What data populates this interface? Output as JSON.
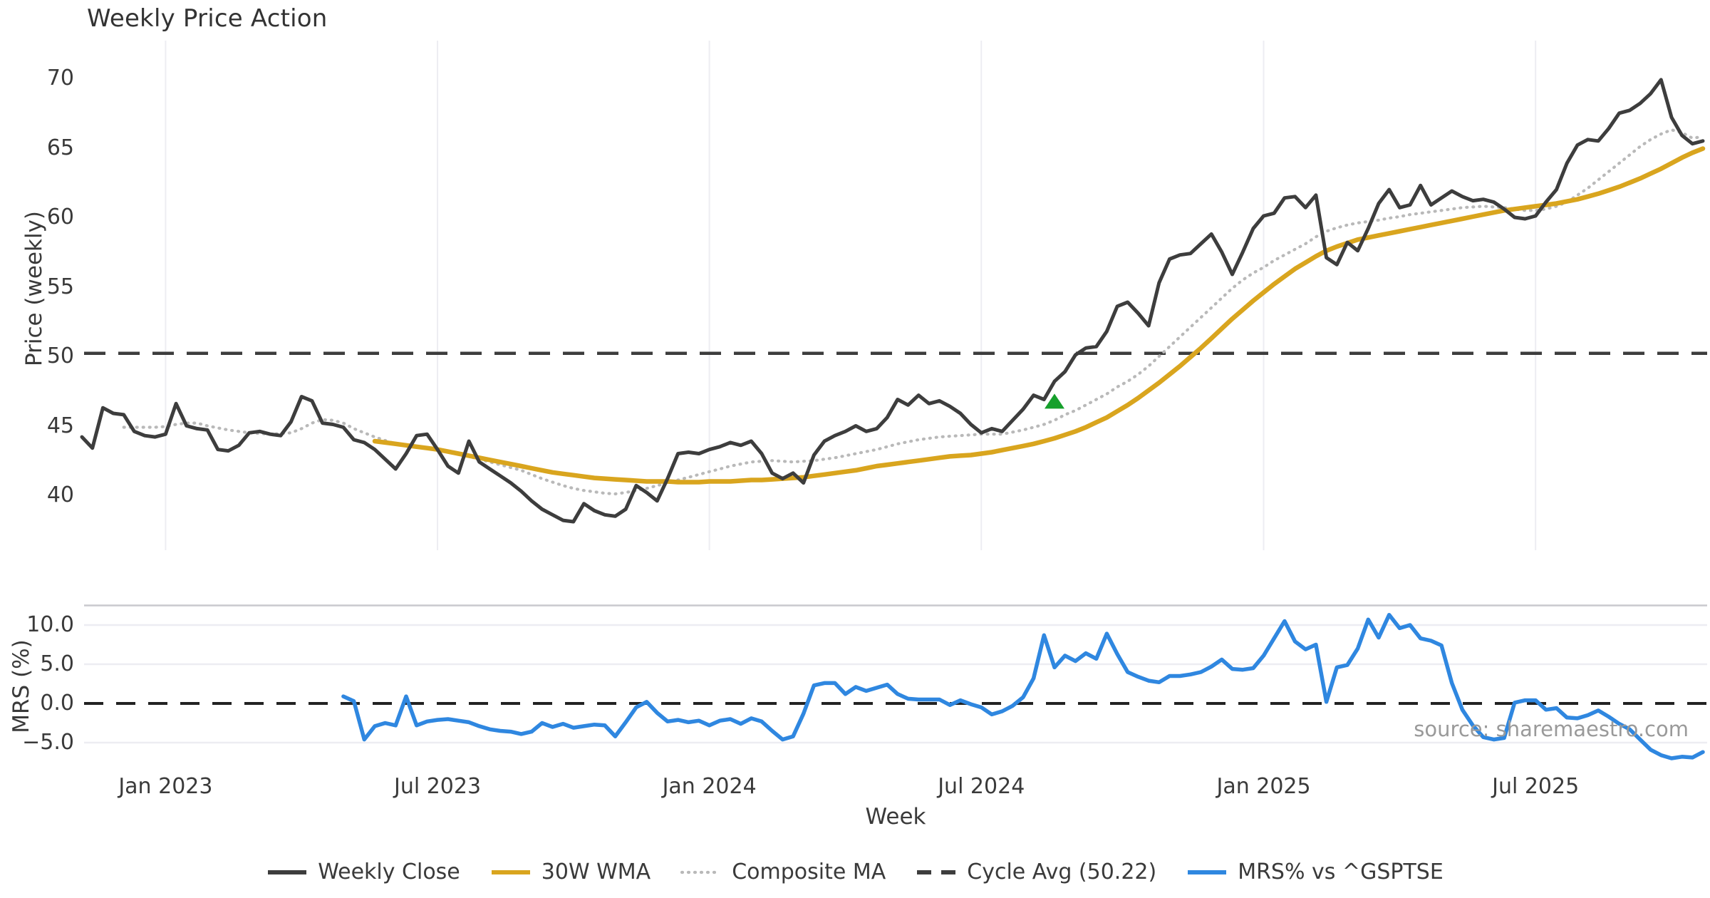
{
  "title": "Weekly Price Action",
  "xlabel": "Week",
  "source_note": "source: sharemaestro.com",
  "top_panel": {
    "ylabel": "Price (weekly)",
    "yticks": [
      70,
      65,
      60,
      55,
      50,
      45,
      40
    ],
    "ylim": [
      37.0,
      72.6
    ],
    "grid": "vertical-light"
  },
  "bottom_panel": {
    "ylabel": "MRS (%)",
    "yticks": [
      "10.0",
      "5.0",
      "0.0",
      "−5.0"
    ],
    "ytick_values": [
      10.0,
      5.0,
      0.0,
      -5.0
    ],
    "ylim": [
      -8.0,
      12.5
    ],
    "grid": "horizontal-light"
  },
  "x_ticks": [
    {
      "week_index": 8,
      "label": "Jan 2023"
    },
    {
      "week_index": 34,
      "label": "Jul 2023"
    },
    {
      "week_index": 60,
      "label": "Jan 2024"
    },
    {
      "week_index": 86,
      "label": "Jul 2024"
    },
    {
      "week_index": 113,
      "label": "Jan 2025"
    },
    {
      "week_index": 139,
      "label": "Jul 2025"
    }
  ],
  "legend": [
    {
      "label": "Weekly Close",
      "color": "#3d3d3d",
      "style": "solid"
    },
    {
      "label": "30W WMA",
      "color": "#d9a51e",
      "style": "solid"
    },
    {
      "label": "Composite MA",
      "color": "#b9b9b9",
      "style": "dotted"
    },
    {
      "label": "Cycle Avg (50.22)",
      "color": "#3d3d3d",
      "style": "dashed"
    },
    {
      "label": "MRS% vs ^GSPTSE",
      "color": "#2f87e0",
      "style": "solid"
    }
  ],
  "colors": {
    "weekly_close": "#3d3d3d",
    "wma30": "#d9a51e",
    "composite_ma": "#b9b9b9",
    "cycle_avg": "#3d3d3d",
    "mrs": "#2f87e0",
    "signal_marker": "#16a02c",
    "grid": "#ededf2",
    "panel_spine": "#c9c9ce",
    "zero_line": "#222222"
  },
  "chart_data": [
    {
      "type": "line",
      "panel": "top",
      "title": "Weekly Price Action",
      "ylabel": "Price (weekly)",
      "x_unit": "week_index (weekly samples, ~Nov 2022 to ~Oct 2025)",
      "cycle_avg_value": 50.22,
      "signal_marker": {
        "shape": "triangle-up",
        "week_index": 93,
        "value": 46.7
      },
      "series": [
        {
          "name": "Weekly Close",
          "values": [
            44.2,
            43.4,
            46.3,
            45.9,
            45.8,
            44.6,
            44.3,
            44.2,
            44.4,
            46.6,
            45.0,
            44.8,
            44.7,
            43.3,
            43.2,
            43.6,
            44.5,
            44.6,
            44.4,
            44.3,
            45.3,
            47.1,
            46.8,
            45.2,
            45.1,
            44.9,
            44.0,
            43.8,
            43.3,
            42.6,
            41.9,
            43.0,
            44.3,
            44.4,
            43.3,
            42.1,
            41.6,
            43.9,
            42.4,
            41.9,
            41.4,
            40.9,
            40.3,
            39.6,
            39.0,
            38.6,
            38.2,
            38.1,
            39.4,
            38.9,
            38.6,
            38.5,
            39.0,
            40.7,
            40.2,
            39.6,
            41.2,
            43.0,
            43.1,
            43.0,
            43.3,
            43.5,
            43.8,
            43.6,
            43.9,
            43.0,
            41.6,
            41.2,
            41.6,
            40.9,
            42.9,
            43.9,
            44.3,
            44.6,
            45.0,
            44.6,
            44.8,
            45.6,
            46.9,
            46.5,
            47.2,
            46.6,
            46.8,
            46.4,
            45.9,
            45.1,
            44.5,
            44.8,
            44.6,
            45.4,
            46.2,
            47.2,
            46.9,
            48.2,
            48.9,
            50.1,
            50.6,
            50.7,
            51.8,
            53.6,
            53.9,
            53.1,
            52.2,
            55.3,
            57.0,
            57.3,
            57.4,
            58.1,
            58.8,
            57.5,
            55.9,
            57.5,
            59.2,
            60.1,
            60.3,
            61.4,
            61.5,
            60.7,
            61.6,
            57.1,
            56.6,
            58.2,
            57.6,
            59.2,
            61.0,
            62.0,
            60.7,
            60.9,
            62.3,
            60.9,
            61.4,
            61.9,
            61.5,
            61.2,
            61.3,
            61.1,
            60.6,
            60.0,
            59.9,
            60.1,
            61.1,
            62.0,
            63.9,
            65.2,
            65.6,
            65.5,
            66.4,
            67.5,
            67.7,
            68.2,
            68.9,
            69.9,
            67.2,
            65.9,
            65.3,
            65.5
          ]
        },
        {
          "name": "30W WMA",
          "values": [
            null,
            null,
            null,
            null,
            null,
            null,
            null,
            null,
            null,
            null,
            null,
            null,
            null,
            null,
            null,
            null,
            null,
            null,
            null,
            null,
            null,
            null,
            null,
            null,
            null,
            null,
            null,
            null,
            43.9,
            43.8,
            43.7,
            43.6,
            43.5,
            43.4,
            43.3,
            43.15,
            43.0,
            42.85,
            42.7,
            42.55,
            42.4,
            42.25,
            42.1,
            41.95,
            41.8,
            41.65,
            41.55,
            41.45,
            41.35,
            41.25,
            41.2,
            41.15,
            41.1,
            41.05,
            41.0,
            41.0,
            41.0,
            40.95,
            40.95,
            40.95,
            41.0,
            41.0,
            41.0,
            41.05,
            41.1,
            41.1,
            41.15,
            41.2,
            41.25,
            41.3,
            41.4,
            41.5,
            41.6,
            41.7,
            41.8,
            41.95,
            42.1,
            42.2,
            42.3,
            42.4,
            42.5,
            42.6,
            42.7,
            42.8,
            42.85,
            42.9,
            43.0,
            43.1,
            43.25,
            43.4,
            43.55,
            43.7,
            43.9,
            44.1,
            44.35,
            44.6,
            44.9,
            45.25,
            45.6,
            46.05,
            46.5,
            47.0,
            47.55,
            48.1,
            48.7,
            49.3,
            49.95,
            50.6,
            51.3,
            52.0,
            52.7,
            53.35,
            54.0,
            54.6,
            55.2,
            55.75,
            56.3,
            56.75,
            57.2,
            57.6,
            57.9,
            58.15,
            58.4,
            58.55,
            58.7,
            58.85,
            59.0,
            59.15,
            59.3,
            59.45,
            59.6,
            59.75,
            59.9,
            60.05,
            60.2,
            60.35,
            60.5,
            60.6,
            60.7,
            60.8,
            60.9,
            61.0,
            61.15,
            61.3,
            61.5,
            61.7,
            61.95,
            62.2,
            62.5,
            62.8,
            63.15,
            63.5,
            63.9,
            64.3,
            64.65,
            64.95
          ]
        },
        {
          "name": "Composite MA",
          "values": [
            null,
            null,
            null,
            null,
            44.9,
            44.9,
            44.9,
            44.9,
            44.95,
            45.1,
            45.2,
            45.2,
            45.0,
            44.85,
            44.7,
            44.6,
            44.5,
            44.45,
            44.4,
            44.45,
            44.5,
            44.8,
            45.2,
            45.45,
            45.4,
            45.2,
            44.8,
            44.5,
            44.2,
            43.95,
            43.7,
            43.6,
            43.5,
            43.4,
            43.3,
            43.15,
            43.0,
            42.8,
            42.6,
            42.4,
            42.2,
            42.0,
            41.8,
            41.5,
            41.2,
            40.95,
            40.7,
            40.5,
            40.35,
            40.25,
            40.15,
            40.1,
            40.2,
            40.35,
            40.5,
            40.7,
            40.9,
            41.1,
            41.3,
            41.5,
            41.7,
            41.9,
            42.1,
            42.25,
            42.4,
            42.45,
            42.5,
            42.45,
            42.4,
            42.45,
            42.5,
            42.6,
            42.7,
            42.85,
            43.0,
            43.15,
            43.3,
            43.5,
            43.7,
            43.85,
            44.0,
            44.1,
            44.2,
            44.25,
            44.3,
            44.35,
            44.4,
            44.4,
            44.4,
            44.55,
            44.7,
            44.9,
            45.1,
            45.4,
            45.8,
            46.1,
            46.5,
            46.9,
            47.3,
            47.8,
            48.2,
            48.7,
            49.3,
            50.0,
            50.7,
            51.4,
            52.1,
            52.8,
            53.5,
            54.2,
            54.9,
            55.5,
            56.0,
            56.4,
            56.9,
            57.3,
            57.7,
            58.1,
            58.6,
            59.0,
            59.25,
            59.45,
            59.6,
            59.7,
            59.8,
            59.95,
            60.05,
            60.2,
            60.3,
            60.4,
            60.5,
            60.6,
            60.7,
            60.75,
            60.8,
            60.75,
            60.7,
            60.6,
            60.5,
            60.5,
            60.6,
            60.8,
            61.1,
            61.6,
            62.1,
            62.7,
            63.3,
            63.9,
            64.5,
            65.1,
            65.6,
            66.0,
            66.3,
            66.1,
            65.7,
            65.8
          ]
        }
      ]
    },
    {
      "type": "line",
      "panel": "bottom",
      "ylabel": "MRS (%)",
      "zero_line": 0.0,
      "series": [
        {
          "name": "MRS% vs ^GSPTSE",
          "values": [
            null,
            null,
            null,
            null,
            null,
            null,
            null,
            null,
            null,
            null,
            null,
            null,
            null,
            null,
            null,
            null,
            null,
            null,
            null,
            null,
            null,
            null,
            null,
            null,
            null,
            0.9,
            0.3,
            -4.6,
            -2.9,
            -2.5,
            -2.8,
            0.9,
            -2.8,
            -2.3,
            -2.1,
            -2.0,
            -2.2,
            -2.4,
            -2.9,
            -3.3,
            -3.5,
            -3.6,
            -3.9,
            -3.6,
            -2.5,
            -3.0,
            -2.6,
            -3.1,
            -2.9,
            -2.7,
            -2.8,
            -4.2,
            -2.4,
            -0.5,
            0.2,
            -1.2,
            -2.3,
            -2.1,
            -2.4,
            -2.2,
            -2.8,
            -2.2,
            -2.0,
            -2.6,
            -1.9,
            -2.3,
            -3.5,
            -4.6,
            -4.2,
            -1.3,
            2.3,
            2.6,
            2.6,
            1.2,
            2.1,
            1.6,
            2.0,
            2.4,
            1.2,
            0.6,
            0.5,
            0.5,
            0.5,
            -0.2,
            0.4,
            -0.1,
            -0.5,
            -1.4,
            -1.0,
            -0.3,
            0.8,
            3.2,
            8.7,
            4.6,
            6.1,
            5.4,
            6.4,
            5.7,
            8.9,
            6.3,
            4.0,
            3.4,
            2.9,
            2.7,
            3.5,
            3.5,
            3.7,
            4.0,
            4.7,
            5.6,
            4.4,
            4.3,
            4.5,
            6.1,
            8.3,
            10.5,
            7.9,
            6.9,
            7.5,
            0.2,
            4.6,
            4.9,
            7.0,
            10.7,
            8.4,
            11.3,
            9.6,
            10.0,
            8.3,
            8.0,
            7.4,
            2.6,
            -0.8,
            -2.8,
            -4.3,
            -4.6,
            -4.4,
            0.1,
            0.4,
            0.4,
            -0.8,
            -0.6,
            -1.8,
            -1.9,
            -1.5,
            -0.9,
            -1.7,
            -2.6,
            -3.3,
            -4.6,
            -5.9,
            -6.6,
            -7.0,
            -6.8,
            -6.9,
            -6.2
          ]
        }
      ]
    }
  ]
}
